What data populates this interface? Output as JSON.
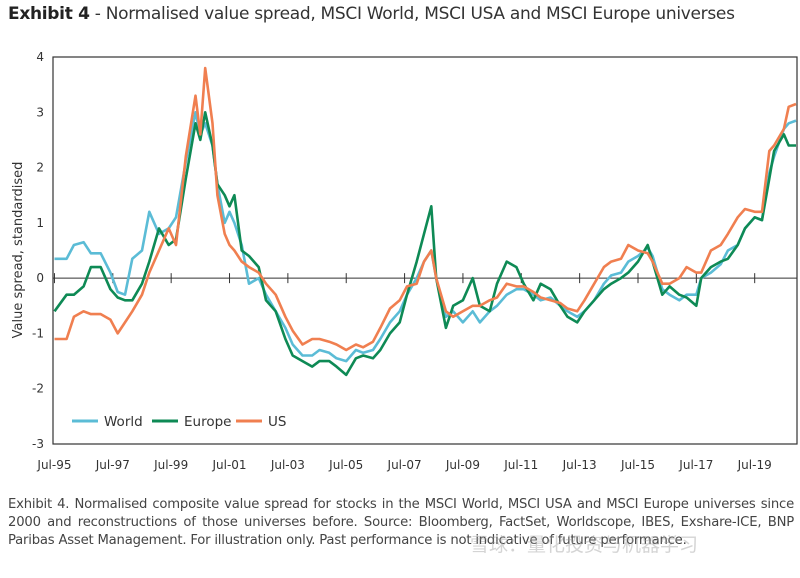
{
  "title": {
    "prefix": "Exhibit 4",
    "text": " - Normalised value spread, MSCI World, MSCI USA and MSCI Europe universes"
  },
  "caption": "Exhibit 4. Normalised composite value spread for stocks in the MSCI World, MSCI USA and MSCI Europe universes since 2000 and reconstructions of those universes before. Source: Bloomberg, FactSet, Worldscope, IBES, Exshare-ICE, BNP Paribas Asset Management. For illustration only. Past performance is not indicative of future performance.",
  "watermark": "雪球：量化投资与机器学习",
  "chart_data": {
    "type": "line",
    "title": "",
    "xlabel": "",
    "ylabel": "Value spread, standardised",
    "ylim": [
      -3,
      4
    ],
    "yticks": [
      4,
      3,
      2,
      1,
      0,
      -1,
      -2,
      -3
    ],
    "xticks": [
      "Jul-95",
      "Jul-97",
      "Jul-99",
      "Jul-01",
      "Jul-03",
      "Jul-05",
      "Jul-07",
      "Jul-09",
      "Jul-11",
      "Jul-13",
      "Jul-15",
      "Jul-17",
      "Jul-19"
    ],
    "grid": false,
    "legend": "bottom-left",
    "x": [
      "1995-07",
      "1995-12",
      "1996-03",
      "1996-07",
      "1996-10",
      "1997-02",
      "1997-06",
      "1997-09",
      "1997-12",
      "1998-03",
      "1998-07",
      "1998-10",
      "1999-02",
      "1999-06",
      "1999-09",
      "2000-01",
      "2000-05",
      "2000-07",
      "2000-09",
      "2000-12",
      "2001-02",
      "2001-05",
      "2001-07",
      "2001-09",
      "2001-12",
      "2002-03",
      "2002-07",
      "2002-10",
      "2003-02",
      "2003-06",
      "2003-09",
      "2004-01",
      "2004-05",
      "2004-08",
      "2004-12",
      "2005-03",
      "2005-07",
      "2005-11",
      "2006-02",
      "2006-06",
      "2006-09",
      "2007-01",
      "2007-05",
      "2007-08",
      "2007-12",
      "2008-03",
      "2008-06",
      "2008-08",
      "2008-12",
      "2009-03",
      "2009-07",
      "2009-11",
      "2010-02",
      "2010-06",
      "2010-09",
      "2011-01",
      "2011-05",
      "2011-08",
      "2011-12",
      "2012-03",
      "2012-07",
      "2012-11",
      "2013-02",
      "2013-06",
      "2013-09",
      "2014-01",
      "2014-05",
      "2014-08",
      "2014-12",
      "2015-03",
      "2015-07",
      "2015-11",
      "2016-01",
      "2016-05",
      "2016-08",
      "2016-12",
      "2017-03",
      "2017-07",
      "2017-09",
      "2018-01",
      "2018-05",
      "2018-08",
      "2018-12",
      "2019-03",
      "2019-07",
      "2019-10",
      "2020-01",
      "2020-03",
      "2020-07",
      "2020-09",
      "2020-12"
    ],
    "series": [
      {
        "name": "World",
        "color": "#5bbcd6",
        "values": [
          0.35,
          0.35,
          0.6,
          0.65,
          0.45,
          0.45,
          0.1,
          -0.25,
          -0.3,
          0.35,
          0.5,
          1.2,
          0.8,
          0.9,
          1.1,
          2.1,
          3.0,
          2.6,
          2.8,
          2.4,
          1.7,
          1.0,
          1.2,
          1.0,
          0.6,
          -0.1,
          0.0,
          -0.3,
          -0.6,
          -0.9,
          -1.2,
          -1.4,
          -1.4,
          -1.3,
          -1.35,
          -1.45,
          -1.5,
          -1.3,
          -1.35,
          -1.3,
          -1.1,
          -0.8,
          -0.6,
          -0.3,
          0.0,
          0.3,
          0.5,
          0.0,
          -0.7,
          -0.6,
          -0.8,
          -0.6,
          -0.8,
          -0.6,
          -0.5,
          -0.3,
          -0.2,
          -0.2,
          -0.3,
          -0.4,
          -0.35,
          -0.5,
          -0.6,
          -0.7,
          -0.6,
          -0.4,
          -0.1,
          0.05,
          0.1,
          0.3,
          0.4,
          0.55,
          0.4,
          -0.2,
          -0.3,
          -0.4,
          -0.3,
          -0.3,
          0.0,
          0.1,
          0.25,
          0.5,
          0.6,
          0.9,
          1.1,
          1.05,
          1.9,
          2.2,
          2.7,
          2.8,
          2.85
        ]
      },
      {
        "name": "Europe",
        "color": "#0e8a55",
        "values": [
          -0.6,
          -0.3,
          -0.3,
          -0.15,
          0.2,
          0.2,
          -0.2,
          -0.35,
          -0.4,
          -0.4,
          -0.1,
          0.3,
          0.9,
          0.6,
          0.7,
          1.8,
          2.8,
          2.5,
          3.0,
          2.4,
          1.7,
          1.5,
          1.3,
          1.5,
          0.5,
          0.4,
          0.2,
          -0.4,
          -0.6,
          -1.1,
          -1.4,
          -1.5,
          -1.6,
          -1.5,
          -1.5,
          -1.6,
          -1.75,
          -1.45,
          -1.4,
          -1.45,
          -1.3,
          -1.0,
          -0.8,
          -0.3,
          0.3,
          0.8,
          1.3,
          0.0,
          -0.9,
          -0.5,
          -0.4,
          0.0,
          -0.5,
          -0.6,
          -0.1,
          0.3,
          0.2,
          -0.1,
          -0.4,
          -0.1,
          -0.2,
          -0.5,
          -0.7,
          -0.8,
          -0.6,
          -0.4,
          -0.2,
          -0.1,
          0.0,
          0.1,
          0.3,
          0.6,
          0.3,
          -0.3,
          -0.15,
          -0.3,
          -0.35,
          -0.5,
          0.0,
          0.2,
          0.3,
          0.35,
          0.6,
          0.9,
          1.1,
          1.05,
          1.8,
          2.3,
          2.6,
          2.4,
          2.4
        ]
      },
      {
        "name": "US",
        "color": "#f07f50",
        "values": [
          -1.1,
          -1.1,
          -0.7,
          -0.6,
          -0.65,
          -0.65,
          -0.75,
          -1.0,
          -0.8,
          -0.6,
          -0.3,
          0.1,
          0.5,
          0.9,
          0.6,
          2.2,
          3.3,
          2.6,
          3.8,
          2.8,
          1.5,
          0.8,
          0.6,
          0.5,
          0.3,
          0.2,
          0.1,
          -0.1,
          -0.3,
          -0.7,
          -0.95,
          -1.2,
          -1.1,
          -1.1,
          -1.15,
          -1.2,
          -1.3,
          -1.2,
          -1.25,
          -1.15,
          -0.9,
          -0.55,
          -0.4,
          -0.15,
          -0.1,
          0.3,
          0.5,
          0.0,
          -0.6,
          -0.7,
          -0.6,
          -0.5,
          -0.5,
          -0.4,
          -0.35,
          -0.1,
          -0.15,
          -0.15,
          -0.25,
          -0.35,
          -0.4,
          -0.45,
          -0.55,
          -0.6,
          -0.4,
          -0.1,
          0.2,
          0.3,
          0.35,
          0.6,
          0.5,
          0.45,
          0.3,
          -0.1,
          -0.1,
          0.0,
          0.2,
          0.1,
          0.1,
          0.5,
          0.6,
          0.8,
          1.1,
          1.25,
          1.2,
          1.2,
          2.3,
          2.4,
          2.7,
          3.1,
          3.15
        ]
      }
    ]
  }
}
